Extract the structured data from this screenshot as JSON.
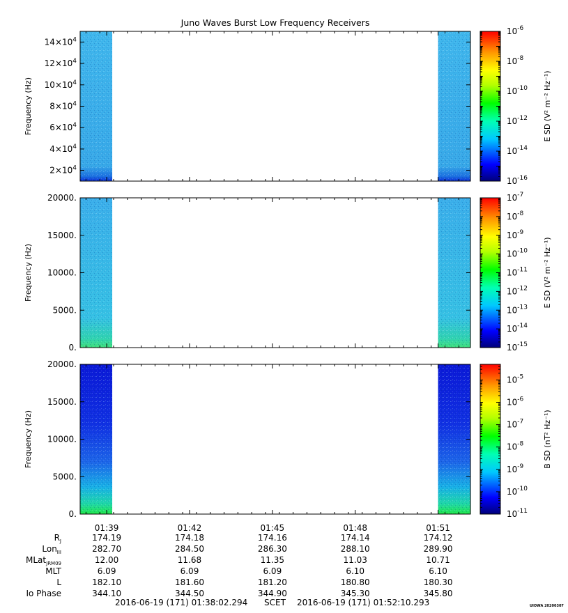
{
  "chart_data": [
    {
      "type": "heatmap",
      "title": "Juno Waves Burst Low Frequency Receivers",
      "ylabel": "Frequency (Hz)",
      "ylim": [
        10000,
        150000
      ],
      "ytick_values": [
        20000,
        40000,
        60000,
        80000,
        100000,
        120000,
        140000
      ],
      "ytick_labels": [
        "2×10^4",
        "4×10^4",
        "6×10^4",
        "8×10^4",
        "10×10^4",
        "12×10^4",
        "14×10^4"
      ],
      "colorbar": {
        "label": "E SD (V² m⁻² Hz⁻¹)",
        "log_range": [
          -16,
          -6
        ],
        "tick_exponents": [
          -16,
          -14,
          -12,
          -10,
          -8,
          -6
        ]
      },
      "data_intervals": [
        {
          "start": "01:38:02",
          "end": "01:39:12"
        },
        {
          "start": "01:51:00",
          "end": "01:52:10"
        }
      ]
    },
    {
      "type": "heatmap",
      "ylabel": "Frequency (Hz)",
      "ylim": [
        0,
        20000
      ],
      "ytick_values": [
        0,
        5000,
        10000,
        15000,
        20000
      ],
      "ytick_labels": [
        "0.",
        "5000.",
        "10000.",
        "15000.",
        "20000."
      ],
      "colorbar": {
        "label": "E SD (V² m⁻² Hz⁻¹)",
        "log_range": [
          -15,
          -7
        ],
        "tick_exponents": [
          -15,
          -14,
          -13,
          -12,
          -11,
          -10,
          -9,
          -8,
          -7
        ]
      },
      "data_intervals": [
        {
          "start": "01:38:02",
          "end": "01:39:12"
        },
        {
          "start": "01:51:00",
          "end": "01:52:10"
        }
      ]
    },
    {
      "type": "heatmap",
      "ylabel": "Frequency (Hz)",
      "ylim": [
        0,
        20000
      ],
      "ytick_values": [
        0,
        5000,
        10000,
        15000,
        20000
      ],
      "ytick_labels": [
        "0.",
        "5000.",
        "10000.",
        "15000.",
        "20000."
      ],
      "colorbar": {
        "label": "B SD (nT² Hz⁻¹)",
        "log_range": [
          -11,
          -4.3
        ],
        "tick_exponents": [
          -11,
          -10,
          -9,
          -8,
          -7,
          -6,
          -5
        ]
      },
      "data_intervals": [
        {
          "start": "01:38:02",
          "end": "01:39:12"
        },
        {
          "start": "01:51:00",
          "end": "01:52:10"
        }
      ]
    }
  ],
  "x_axis": {
    "tick_labels": [
      "01:39",
      "01:42",
      "01:45",
      "01:48",
      "01:51"
    ],
    "tick_minutes": [
      39,
      42,
      45,
      48,
      51
    ]
  },
  "ephemeris": {
    "rows": [
      {
        "label": "R",
        "sub": "J",
        "values": [
          "174.19",
          "174.18",
          "174.16",
          "174.14",
          "174.12"
        ]
      },
      {
        "label": "Lon",
        "sub": "III",
        "values": [
          "282.70",
          "284.50",
          "286.30",
          "288.10",
          "289.90"
        ]
      },
      {
        "label": "MLat",
        "sub": "JRM09",
        "values": [
          "12.00",
          "11.68",
          "11.35",
          "11.03",
          "10.71"
        ]
      },
      {
        "label": "MLT",
        "sub": "",
        "values": [
          "6.09",
          "6.09",
          "6.09",
          "6.10",
          "6.10"
        ]
      },
      {
        "label": "L",
        "sub": "",
        "values": [
          "182.10",
          "181.60",
          "181.20",
          "180.80",
          "180.30"
        ]
      },
      {
        "label": "Io Phase",
        "sub": "",
        "values": [
          "344.10",
          "344.50",
          "344.90",
          "345.30",
          "345.80"
        ]
      }
    ]
  },
  "footer": {
    "start_time": "2016-06-19 (171) 01:38:02.294",
    "scet": "SCET",
    "end_time": "2016-06-19 (171) 01:52:10.293",
    "stamp": "UIOWA 20200307"
  }
}
